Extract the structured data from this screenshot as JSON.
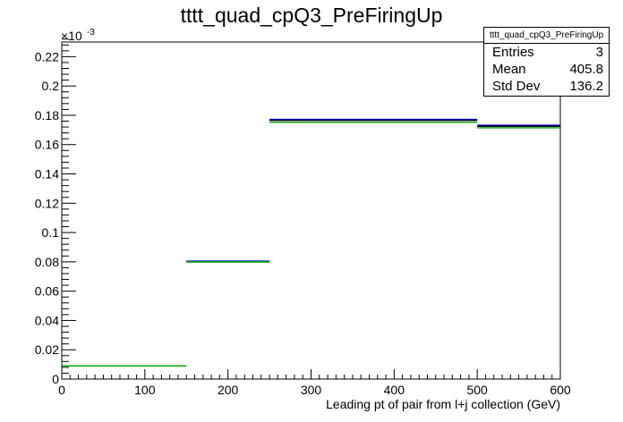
{
  "chart_data": {
    "type": "histogram",
    "title": "tttt_quad_cpQ3_PreFiringUp",
    "xlabel": "Leading pt of pair from l+j collection (GeV)",
    "ylabel": "",
    "y_exponent_label": "×10",
    "y_exponent_power": "-3",
    "xlim": [
      0,
      600
    ],
    "ylim": [
      0,
      0.23
    ],
    "x_ticks": [
      0,
      100,
      200,
      300,
      400,
      500,
      600
    ],
    "x_tick_labels": [
      "0",
      "100",
      "200",
      "300",
      "400",
      "500",
      "600"
    ],
    "y_ticks": [
      0,
      0.02,
      0.04,
      0.06,
      0.08,
      0.1,
      0.12,
      0.14,
      0.16,
      0.18,
      0.2,
      0.22
    ],
    "y_tick_labels": [
      "0",
      "0.02",
      "0.04",
      "0.06",
      "0.08",
      "0.1",
      "0.12",
      "0.14",
      "0.16",
      "0.18",
      "0.2",
      "0.22"
    ],
    "bins": [
      {
        "x_low": 0,
        "x_high": 150,
        "value": 0.009
      },
      {
        "x_low": 150,
        "x_high": 250,
        "value": 0.08
      },
      {
        "x_low": 250,
        "x_high": 500,
        "value": 0.1765
      },
      {
        "x_low": 500,
        "x_high": 600,
        "value": 0.1725
      }
    ],
    "series": [
      {
        "color": "#000000",
        "values": [
          0.009,
          0.08,
          0.1765,
          0.1725
        ]
      },
      {
        "color": "#0000cc",
        "values": [
          0.009,
          0.0805,
          0.1772,
          0.1732
        ]
      },
      {
        "color": "#00aa00",
        "values": [
          0.009,
          0.08,
          0.1752,
          0.1715
        ]
      }
    ],
    "stats_box": {
      "name": "tttt_quad_cpQ3_PreFiringUp",
      "entries_label": "Entries",
      "entries": "3",
      "mean_label": "Mean",
      "mean": "405.8",
      "stddev_label": "Std Dev",
      "stddev": "136.2"
    },
    "grid": false,
    "legend": "none"
  }
}
